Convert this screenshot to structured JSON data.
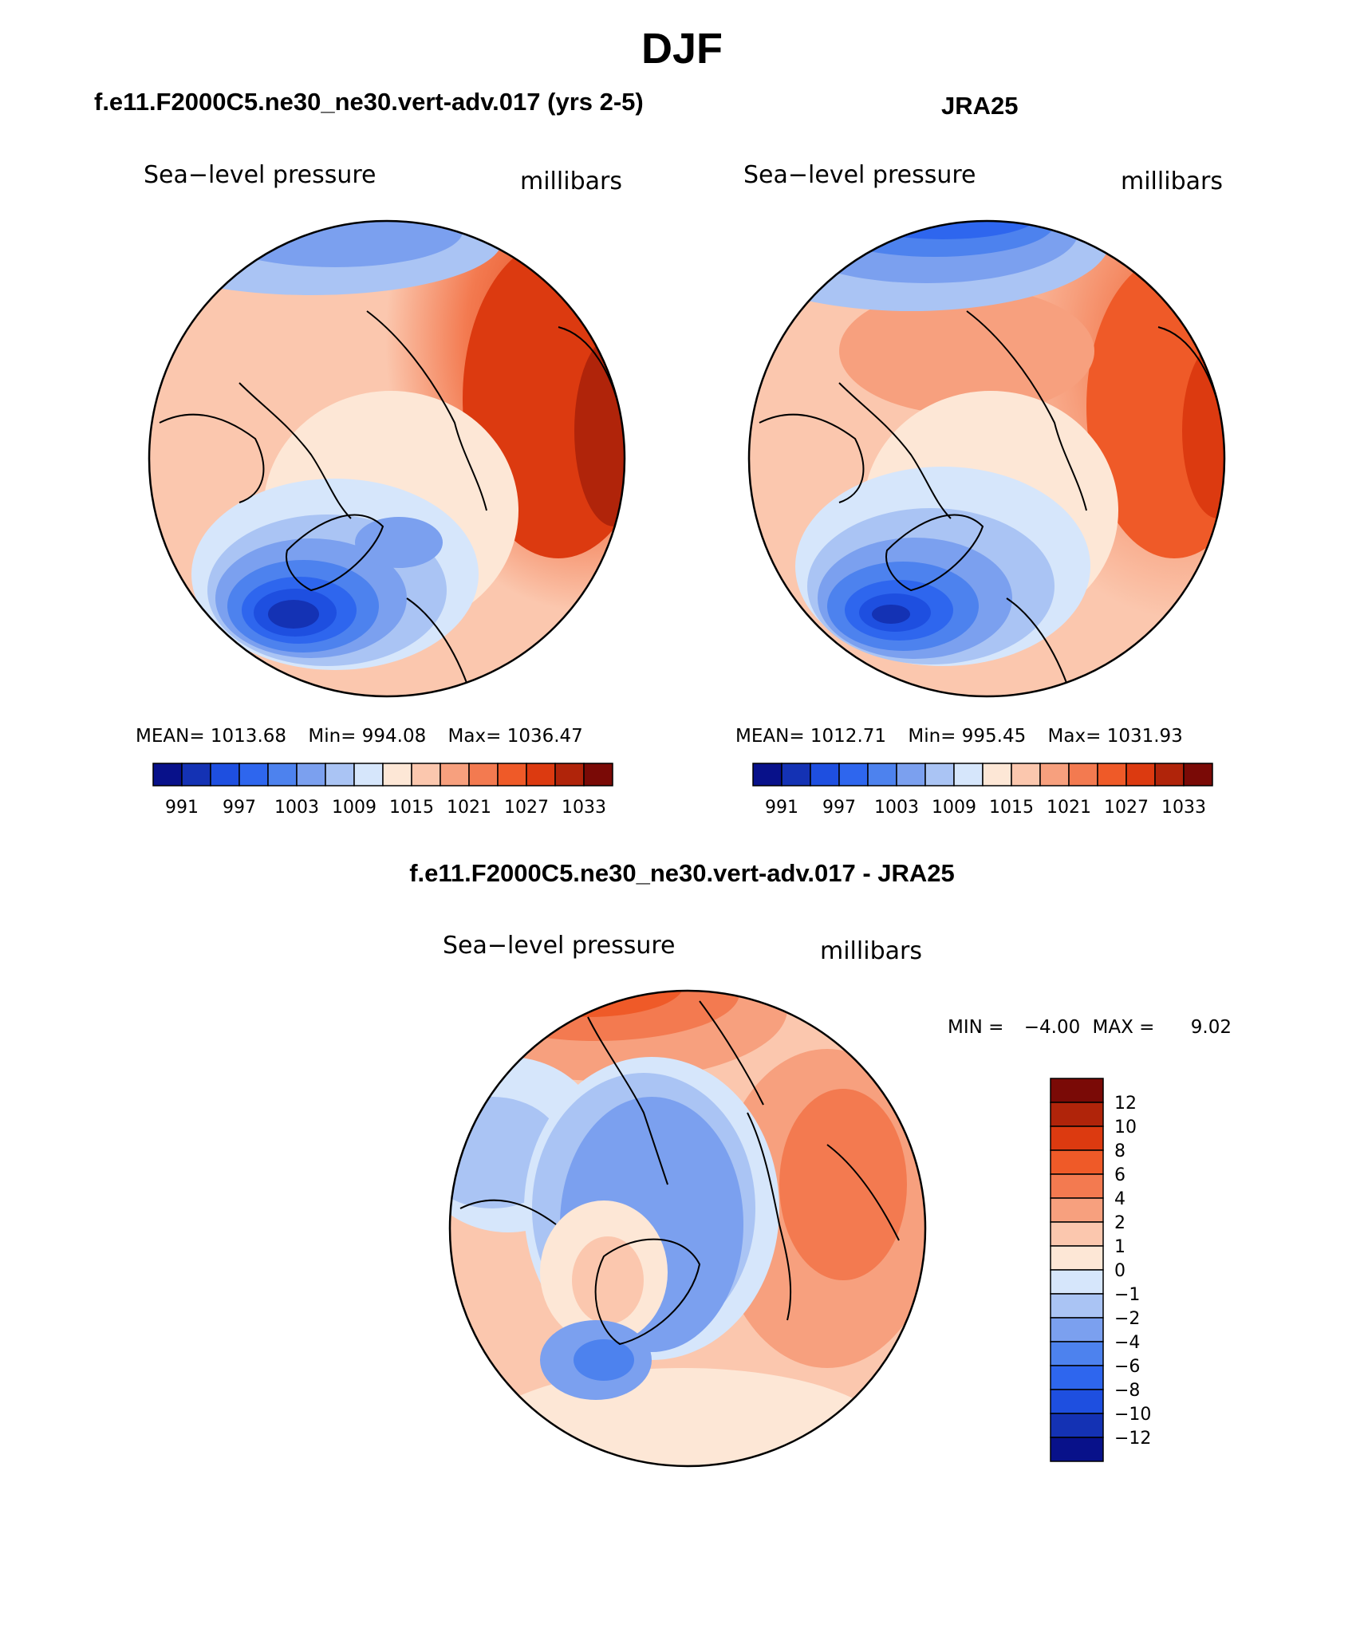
{
  "page": {
    "title": "DJF"
  },
  "chart_data": [
    {
      "type": "heatmap",
      "projection": "north-polar-stereographic",
      "title": "f.e11.F2000C5.ne30_ne30.vert-adv.017 (yrs 2-5)",
      "left_label": "Sea−level pressure",
      "right_label": "millibars",
      "stats": {
        "mean_label": "MEAN=",
        "mean": "1013.68",
        "min_label": "Min=",
        "min": "994.08",
        "max_label": "Max=",
        "max": "1036.47"
      },
      "colorbar": {
        "orientation": "horizontal",
        "tick_labels": [
          "991",
          "997",
          "1003",
          "1009",
          "1015",
          "1021",
          "1027",
          "1033"
        ],
        "colors": [
          "#08118a",
          "#1432b4",
          "#1e4fe0",
          "#2e66ee",
          "#4d82ee",
          "#7ba0ef",
          "#aac4f4",
          "#d6e6fb",
          "#fde7d6",
          "#fbc7ae",
          "#f7a07e",
          "#f37a50",
          "#ef5a28",
          "#dc3a10",
          "#b0240a",
          "#7a0a06"
        ]
      }
    },
    {
      "type": "heatmap",
      "projection": "north-polar-stereographic",
      "title": "JRA25",
      "left_label": "Sea−level pressure",
      "right_label": "millibars",
      "stats": {
        "mean_label": "MEAN=",
        "mean": "1012.71",
        "min_label": "Min=",
        "min": "995.45",
        "max_label": "Max=",
        "max": "1031.93"
      },
      "colorbar": {
        "orientation": "horizontal",
        "tick_labels": [
          "991",
          "997",
          "1003",
          "1009",
          "1015",
          "1021",
          "1027",
          "1033"
        ],
        "colors": [
          "#08118a",
          "#1432b4",
          "#1e4fe0",
          "#2e66ee",
          "#4d82ee",
          "#7ba0ef",
          "#aac4f4",
          "#d6e6fb",
          "#fde7d6",
          "#fbc7ae",
          "#f7a07e",
          "#f37a50",
          "#ef5a28",
          "#dc3a10",
          "#b0240a",
          "#7a0a06"
        ]
      }
    },
    {
      "type": "heatmap",
      "projection": "north-polar-stereographic",
      "title": "f.e11.F2000C5.ne30_ne30.vert-adv.017 - JRA25",
      "left_label": "Sea−level pressure",
      "right_label": "millibars",
      "stats": {
        "min_label": "MIN =",
        "min": "−4.00",
        "max_label": "MAX =",
        "max": "9.02"
      },
      "colorbar": {
        "orientation": "vertical",
        "tick_labels": [
          "12",
          "10",
          "8",
          "6",
          "4",
          "2",
          "1",
          "0",
          "−1",
          "−2",
          "−4",
          "−6",
          "−8",
          "−10",
          "−12"
        ],
        "colors": [
          "#7a0a06",
          "#b0240a",
          "#dc3a10",
          "#ef5a28",
          "#f37a50",
          "#f7a07e",
          "#fbc7ae",
          "#fde7d6",
          "#d6e6fb",
          "#aac4f4",
          "#7ba0ef",
          "#4d82ee",
          "#2e66ee",
          "#1e4fe0",
          "#1432b4",
          "#08118a"
        ]
      }
    }
  ]
}
